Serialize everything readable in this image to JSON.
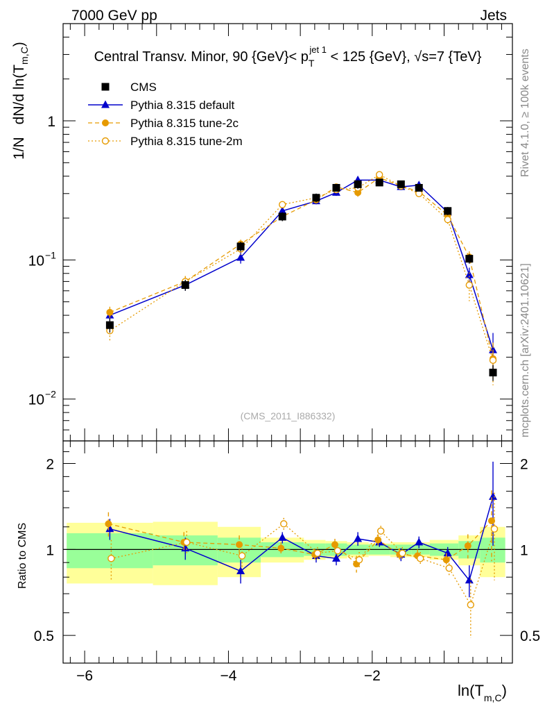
{
  "header": {
    "energy_label": "7000 GeV pp",
    "process_label": "Jets"
  },
  "title": {
    "prefix": "Central Transv. Minor, 90 {GeV}< p",
    "sup": "jet 1",
    "sub": "T",
    "suffix": " < 125 {GeV}, √s=7 {TeV}"
  },
  "side_labels": {
    "rivet": "Rivet 4.1.0, ≥ 100k events",
    "mcplots": "mcplots.cern.ch [arXiv:2401.10621]"
  },
  "analysis_id": "(CMS_2011_I886332)",
  "colors": {
    "cms": "#000000",
    "default": "#0000cc",
    "tune2c": "#e69a00",
    "tune2m": "#e69a00",
    "band_inner": "#99ff99",
    "band_outer": "#ffff99"
  },
  "chart_data": {
    "type": "line",
    "title": "Central Transv. Minor, 90 {GeV}< p_T^{jet 1} < 125 {GeV}, √s=7 {TeV}",
    "xlabel": "ln(T_{m,C})",
    "ylabel": "1/N dN/d ln(T_{m,C})",
    "ratio_ylabel": "Ratio to CMS",
    "xlim": [
      -6.3,
      -0.05
    ],
    "ylim": [
      0.005,
      5
    ],
    "yscale": "log",
    "ratio_ylim": [
      0.4,
      2.4
    ],
    "x_ticks": [
      -6,
      -4,
      -2
    ],
    "x_tick_labels": [
      "−6",
      "−4",
      "−2"
    ],
    "y_ticks": [
      0.01,
      0.1,
      1
    ],
    "y_tick_labels": [
      [
        "10",
        "−2"
      ],
      [
        "10",
        "−1"
      ],
      [
        "1",
        ""
      ]
    ],
    "ratio_ticks": [
      0.5,
      1,
      2
    ],
    "ratio_tick_labels": [
      "0.5",
      "1",
      "2"
    ],
    "x": [
      -5.65,
      -4.6,
      -3.83,
      -3.25,
      -2.78,
      -2.5,
      -2.2,
      -1.9,
      -1.6,
      -1.35,
      -0.95,
      -0.65,
      -0.32
    ],
    "bin_edges": [
      -6.25,
      -5.05,
      -4.15,
      -3.55,
      -2.95,
      -2.65,
      -2.35,
      -2.05,
      -1.75,
      -1.45,
      -1.2,
      -0.8,
      -0.5,
      -0.15
    ],
    "series": [
      {
        "name": "CMS",
        "style": "square",
        "values": [
          0.034,
          0.066,
          0.125,
          0.205,
          0.28,
          0.33,
          0.35,
          0.36,
          0.35,
          0.33,
          0.225,
          0.102,
          0.0155
        ],
        "errors": [
          0.004,
          0.006,
          0.01,
          0.015,
          0.02,
          0.02,
          0.025,
          0.02,
          0.02,
          0.02,
          0.015,
          0.008,
          0.002
        ],
        "band_inner": [
          0.14,
          0.12,
          0.1,
          0.06,
          0.05,
          0.05,
          0.04,
          0.04,
          0.04,
          0.04,
          0.05,
          0.07,
          0.1
        ],
        "band_outer": [
          0.24,
          0.25,
          0.2,
          0.1,
          0.08,
          0.07,
          0.06,
          0.05,
          0.06,
          0.06,
          0.08,
          0.12,
          0.2
        ]
      },
      {
        "name": "Pythia 8.315 default",
        "style": "triangle-solid",
        "values": [
          0.04,
          0.066,
          0.104,
          0.225,
          0.265,
          0.305,
          0.375,
          0.375,
          0.335,
          0.345,
          0.22,
          0.078,
          0.0225
        ],
        "ratio": [
          1.18,
          1.01,
          0.84,
          1.1,
          0.95,
          0.93,
          1.09,
          1.06,
          0.96,
          1.06,
          0.97,
          0.78,
          1.53
        ],
        "ratio_errors": [
          0.1,
          0.09,
          0.08,
          0.05,
          0.05,
          0.05,
          0.06,
          0.04,
          0.05,
          0.05,
          0.05,
          0.1,
          0.5
        ]
      },
      {
        "name": "Pythia 8.315 tune-2c",
        "style": "circle-dashed",
        "values": [
          0.042,
          0.07,
          0.13,
          0.205,
          0.27,
          0.335,
          0.305,
          0.39,
          0.34,
          0.31,
          0.21,
          0.105,
          0.0195
        ],
        "ratio": [
          1.23,
          1.06,
          1.04,
          1.01,
          0.96,
          1.04,
          0.89,
          1.08,
          0.96,
          0.95,
          0.92,
          1.03,
          1.26
        ],
        "ratio_errors": [
          0.12,
          0.09,
          0.08,
          0.05,
          0.05,
          0.05,
          0.06,
          0.05,
          0.05,
          0.05,
          0.05,
          0.1,
          0.35
        ]
      },
      {
        "name": "Pythia 8.315 tune-2m",
        "style": "circle-open-dotted",
        "values": [
          0.031,
          0.07,
          0.12,
          0.25,
          0.28,
          0.32,
          0.33,
          0.41,
          0.34,
          0.3,
          0.195,
          0.066,
          0.019
        ],
        "ratio": [
          0.93,
          1.06,
          0.95,
          1.23,
          0.97,
          0.99,
          0.92,
          1.16,
          0.97,
          0.93,
          0.86,
          0.64,
          1.18
        ],
        "ratio_errors": [
          0.15,
          0.1,
          0.09,
          0.06,
          0.05,
          0.05,
          0.06,
          0.05,
          0.05,
          0.05,
          0.06,
          0.15,
          0.4
        ]
      }
    ]
  }
}
